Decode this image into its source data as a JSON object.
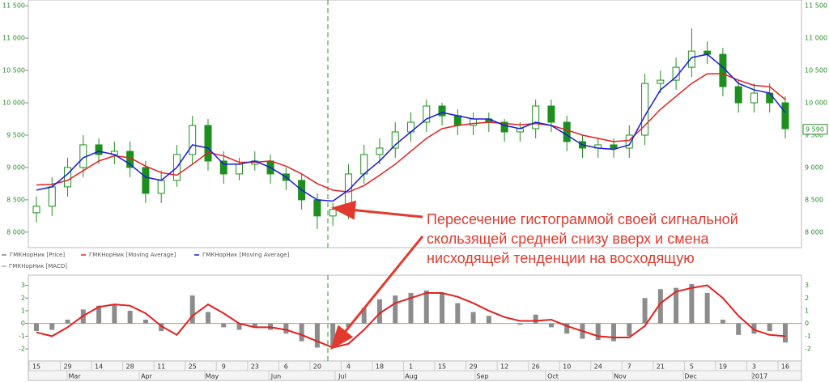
{
  "chart_data": [
    {
      "type": "candlestick",
      "annotation": [
        "Пересечение гистограммой своей сигнальной",
        "скользящей средней снизу вверх и смена",
        "нисходящей тенденции на восходящую"
      ],
      "ylim": [
        7760,
        11590
      ],
      "yticks": [
        {
          "value": 8000,
          "label": "8 000"
        },
        {
          "value": 8500,
          "label": "8 500"
        },
        {
          "value": 9000,
          "label": "9 000"
        },
        {
          "value": 9500,
          "label": "9 500"
        },
        {
          "value": 10000,
          "label": "10 000"
        },
        {
          "value": 10500,
          "label": "10 500"
        },
        {
          "value": 11000,
          "label": "11 000"
        },
        {
          "value": 11500,
          "label": "11 500"
        }
      ],
      "last_price": {
        "value": 9590,
        "label": "9 590"
      },
      "series": [
        {
          "name": "ГМКНорНик [Price]",
          "color": "#1e8f1e",
          "open": [
            8300,
            8400,
            8700,
            9000,
            9350,
            9200,
            9250,
            9000,
            8600,
            8800,
            9200,
            9650,
            9100,
            8900,
            9050,
            9100,
            8900,
            8800,
            8500,
            8250,
            8350,
            8900,
            9200,
            9300,
            9550,
            9700,
            9950,
            9800,
            9650,
            9750,
            9700,
            9550,
            9600,
            9950,
            9700,
            9400,
            9300,
            9350,
            9300,
            9500,
            10300,
            10350,
            10550,
            10800,
            10750,
            10250,
            10000,
            10150,
            10000
          ],
          "high": [
            8550,
            8850,
            9150,
            9500,
            9450,
            9400,
            9400,
            9100,
            8950,
            9350,
            9800,
            9750,
            9250,
            9150,
            9250,
            9200,
            9000,
            8900,
            8600,
            8450,
            9050,
            9350,
            9450,
            9700,
            9850,
            10050,
            10000,
            9900,
            9850,
            9850,
            9750,
            9700,
            10050,
            10050,
            9800,
            9500,
            9450,
            9450,
            9650,
            10450,
            10500,
            10700,
            11150,
            10950,
            10850,
            10350,
            10300,
            10300,
            10100
          ],
          "low": [
            8150,
            8250,
            8550,
            8850,
            9050,
            9050,
            8850,
            8450,
            8450,
            8700,
            9050,
            8950,
            8750,
            8800,
            8950,
            8750,
            8650,
            8350,
            8050,
            8100,
            8200,
            8750,
            9050,
            9150,
            9400,
            9550,
            9650,
            9500,
            9500,
            9550,
            9400,
            9400,
            9450,
            9550,
            9250,
            9150,
            9150,
            9150,
            9150,
            9350,
            10150,
            10200,
            10400,
            10600,
            10100,
            9850,
            9850,
            9850,
            9450
          ],
          "close": [
            8400,
            8700,
            9000,
            9350,
            9200,
            9250,
            9000,
            8600,
            8800,
            9200,
            9650,
            9100,
            8900,
            9050,
            9100,
            8900,
            8800,
            8500,
            8250,
            8350,
            8900,
            9200,
            9300,
            9550,
            9700,
            9950,
            9800,
            9650,
            9750,
            9700,
            9550,
            9600,
            9950,
            9700,
            9400,
            9300,
            9350,
            9300,
            9500,
            10300,
            10350,
            10550,
            10800,
            10750,
            10250,
            10000,
            10150,
            10000,
            9600
          ]
        },
        {
          "name": "ГМКНорНик [Moving Average]",
          "color": "#e32020",
          "values": [
            8730,
            8740,
            8800,
            8950,
            9100,
            9180,
            9150,
            9020,
            8920,
            8880,
            9050,
            9230,
            9180,
            9080,
            9080,
            9100,
            9020,
            8900,
            8750,
            8650,
            8620,
            8720,
            8880,
            9050,
            9250,
            9450,
            9600,
            9650,
            9680,
            9700,
            9680,
            9660,
            9680,
            9650,
            9580,
            9500,
            9450,
            9400,
            9420,
            9650,
            9900,
            10100,
            10300,
            10450,
            10450,
            10350,
            10270,
            10250,
            10050
          ]
        },
        {
          "name": "ГМКНорНик [Moving Average]",
          "color": "#1a1ae0",
          "values": [
            8650,
            8700,
            8900,
            9150,
            9250,
            9200,
            9050,
            8850,
            8800,
            9000,
            9350,
            9300,
            9050,
            9050,
            9100,
            9000,
            8850,
            8650,
            8500,
            8480,
            8650,
            8900,
            9100,
            9350,
            9550,
            9750,
            9850,
            9800,
            9750,
            9750,
            9650,
            9600,
            9700,
            9650,
            9500,
            9350,
            9300,
            9280,
            9350,
            9800,
            10200,
            10400,
            10700,
            10750,
            10550,
            10300,
            10200,
            10150,
            9850
          ]
        }
      ]
    },
    {
      "type": "macd",
      "name": "ГМКНорНик [MACD]",
      "categories": [
        "15",
        null,
        "29",
        null,
        "14",
        null,
        "28",
        null,
        "11",
        null,
        "25",
        null,
        "9",
        null,
        "23",
        null,
        "6",
        null,
        "20",
        null,
        "4",
        null,
        "18",
        null,
        "1",
        null,
        "15",
        null,
        "29",
        null,
        "12",
        null,
        "26",
        null,
        "10",
        null,
        "24",
        null,
        "7",
        null,
        "21",
        null,
        "5",
        null,
        "19",
        null,
        "3",
        null,
        "16"
      ],
      "months": [
        "Mar",
        "Apr",
        "May",
        "Jun",
        "Jul",
        "Aug",
        "Sep",
        "Oct",
        "Nov",
        "Dec",
        "2017"
      ],
      "ylim": [
        -2.95,
        3.8
      ],
      "yticks": [
        -2,
        -1,
        0,
        1,
        2,
        3
      ],
      "histogram": {
        "color": "#8c8c8c",
        "values": [
          -0.6,
          -0.5,
          0.3,
          1.1,
          1.4,
          1.5,
          1.0,
          0.3,
          -0.6,
          0.0,
          2.2,
          0.9,
          -0.3,
          -0.5,
          -0.3,
          -0.5,
          -0.8,
          -1.4,
          -1.9,
          -1.8,
          -0.3,
          1.2,
          1.9,
          2.2,
          2.4,
          2.6,
          2.4,
          1.6,
          0.9,
          0.6,
          0.0,
          -0.1,
          0.7,
          -0.3,
          -0.8,
          -1.2,
          -1.3,
          -1.4,
          -1.0,
          2.0,
          2.7,
          2.8,
          3.1,
          2.4,
          0.3,
          -0.9,
          -0.8,
          -0.6,
          -1.5
        ]
      },
      "signal": {
        "color": "#e32020",
        "values": [
          -0.7,
          -1.0,
          -0.3,
          0.6,
          1.3,
          1.5,
          1.4,
          0.8,
          -0.2,
          -0.9,
          0.6,
          1.5,
          0.8,
          0.0,
          -0.3,
          -0.3,
          -0.5,
          -0.9,
          -1.4,
          -1.9,
          -1.6,
          -0.5,
          0.8,
          1.6,
          2.0,
          2.4,
          2.4,
          2.1,
          1.6,
          1.0,
          0.5,
          0.2,
          0.2,
          0.3,
          -0.2,
          -0.6,
          -1.0,
          -1.1,
          -1.1,
          -0.2,
          1.6,
          2.5,
          2.8,
          3.0,
          2.0,
          0.6,
          -0.5,
          -0.9,
          -1.0
        ]
      }
    }
  ]
}
